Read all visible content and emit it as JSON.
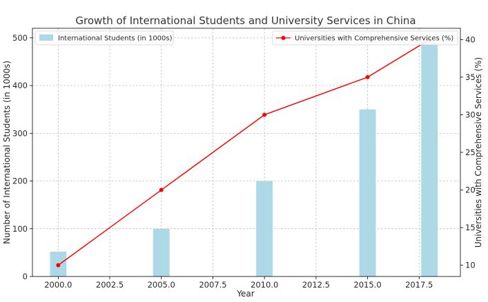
{
  "chart_data": {
    "type": "bar+line",
    "title": "Growth of International Students and University Services in China",
    "xlabel": "Year",
    "ylabel_left": "Number of International Students (in 1000s)",
    "ylabel_right": "Universities with Comprehensive Services (%)",
    "xlim": [
      1998.75,
      2019.5
    ],
    "ylim_left": [
      0,
      520
    ],
    "ylim_right": [
      8.5,
      41.5
    ],
    "x_ticks": [
      "2000.0",
      "2002.5",
      "2005.0",
      "2007.5",
      "2010.0",
      "2012.5",
      "2015.0",
      "2017.5"
    ],
    "y_ticks_left": [
      0,
      100,
      200,
      300,
      400,
      500
    ],
    "y_ticks_right": [
      10,
      15,
      20,
      25,
      30,
      35,
      40
    ],
    "grid": true,
    "series": [
      {
        "name": "International Students (in 1000s)",
        "kind": "bar",
        "axis": "left",
        "color": "#add8e6",
        "x": [
          2000,
          2005,
          2010,
          2015,
          2018
        ],
        "values": [
          52,
          100,
          200,
          350,
          490
        ]
      },
      {
        "name": "Universities with Comprehensive Services (%)",
        "kind": "line",
        "axis": "right",
        "color": "#ff0000",
        "x": [
          2000,
          2005,
          2010,
          2015,
          2018
        ],
        "values": [
          10,
          20,
          30,
          35,
          40
        ]
      }
    ],
    "legend_left_position": "top-left",
    "legend_right_position": "top-right"
  }
}
